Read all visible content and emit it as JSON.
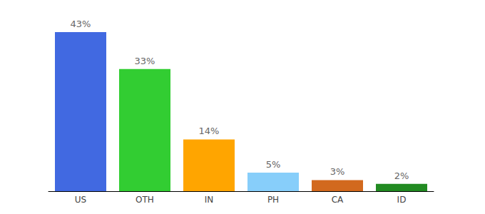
{
  "chart_data": {
    "type": "bar",
    "categories": [
      "US",
      "OTH",
      "IN",
      "PH",
      "CA",
      "ID"
    ],
    "values": [
      43,
      33,
      14,
      5,
      3,
      2
    ],
    "value_labels": [
      "43%",
      "33%",
      "14%",
      "5%",
      "3%",
      "2%"
    ],
    "colors": [
      "#4169e1",
      "#32cd32",
      "#ffa500",
      "#87cefa",
      "#d2691e",
      "#228b22"
    ],
    "data_labels": true,
    "tick_labels": "x"
  }
}
